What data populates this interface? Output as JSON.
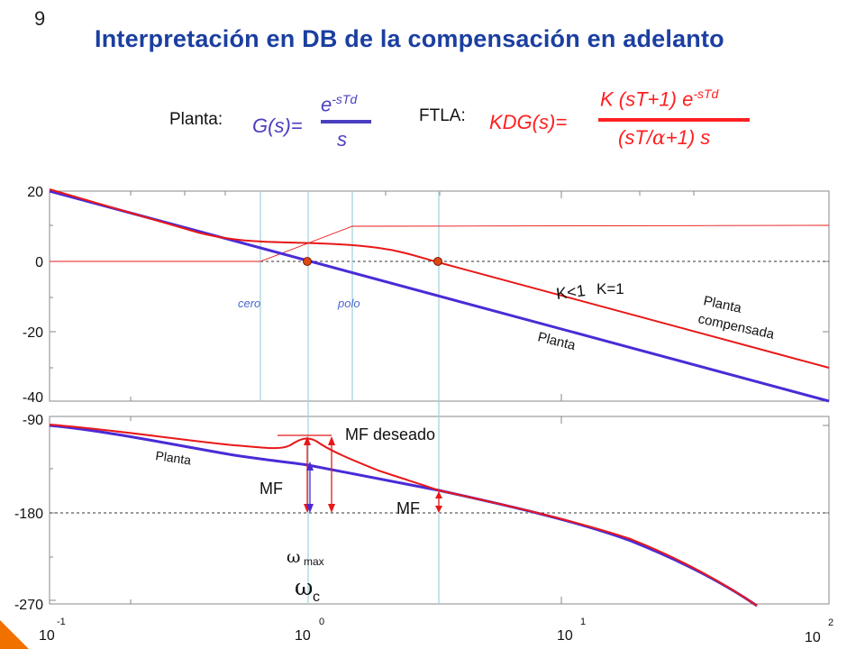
{
  "slide": {
    "number": "9",
    "title": "Interpretación en DB de la compensación en adelanto"
  },
  "equations": {
    "plant_label": "Planta:",
    "plant_lhs": "G(s)=",
    "plant_num_base": "e",
    "plant_num_exp": "-sTd",
    "plant_den": "s",
    "ftla_label": "FTLA:",
    "ftla_lhs": "KDG(s)=",
    "ftla_num_base": "K (sT+1) e",
    "ftla_num_exp": "-sTd",
    "ftla_den_pre": "(sT/",
    "ftla_den_alpha": "α",
    "ftla_den_post": "+1) s"
  },
  "magnitude_plot": {
    "y_ticks": [
      "20",
      "0",
      "-20",
      "-40"
    ],
    "labels": {
      "cero": "cero",
      "polo": "polo",
      "k_less": "K<1",
      "k_one": "K=1",
      "planta": "Planta",
      "planta_comp_1": "Planta",
      "planta_comp_2": "compensada"
    }
  },
  "phase_plot": {
    "y_ticks": [
      "-90",
      "-180",
      "-270"
    ],
    "labels": {
      "planta": "Planta",
      "mf_deseado": "MF deseado",
      "mf_left": "MF",
      "mf_right": "MF",
      "omega_max_symbol": "ω",
      "omega_max_sub": "max",
      "omega_c_symbol": "ω",
      "omega_c_sub": "c"
    }
  },
  "x_axis": {
    "ticks": [
      {
        "base": "10",
        "exp": "-1"
      },
      {
        "base": "10",
        "exp": "0"
      },
      {
        "base": "10",
        "exp": "1"
      },
      {
        "base": "10",
        "exp": "2"
      }
    ]
  },
  "colors": {
    "plant": "#4a2bd6",
    "compensated": "#e81818",
    "vline": "#a8d4e0",
    "title": "#1b3fa0",
    "marker": "#d84a10"
  }
}
